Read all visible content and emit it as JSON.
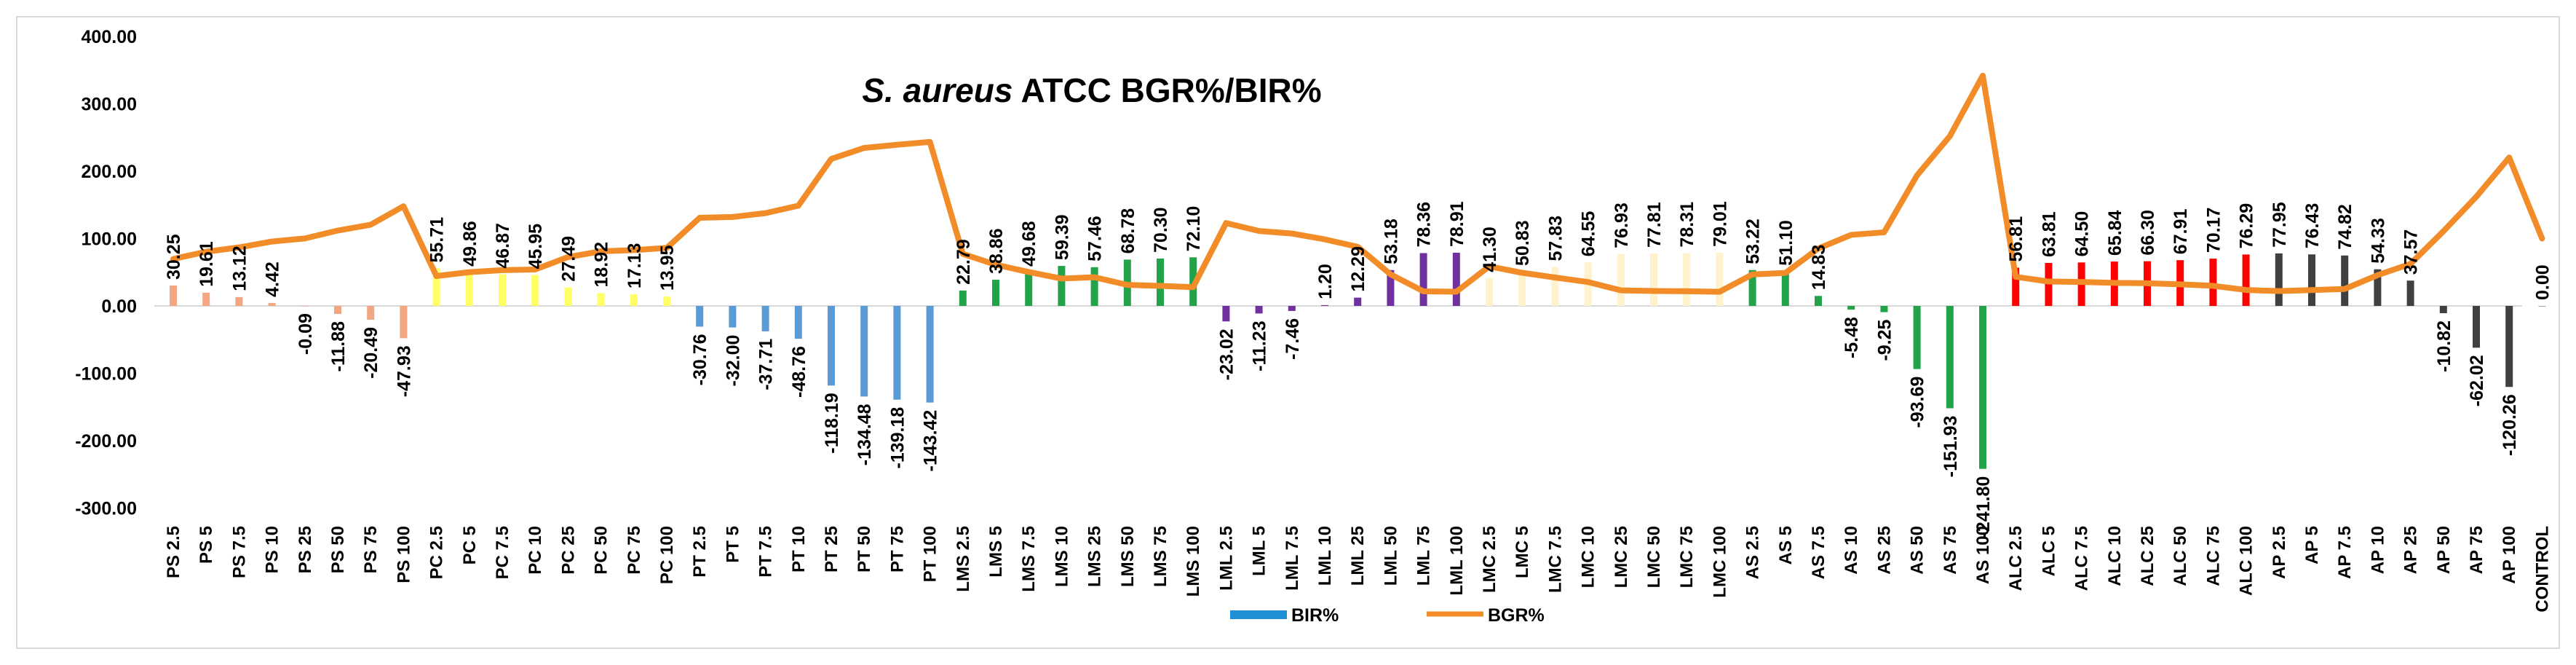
{
  "chart_data": {
    "type": "bar",
    "title_italic": "S. aureus",
    "title_rest": " ATCC BGR%/BIR%",
    "ylim": [
      -300,
      400
    ],
    "yticks": [
      "400.00",
      "300.00",
      "200.00",
      "100.00",
      "0.00",
      "-100.00",
      "-200.00",
      "-300.00"
    ],
    "ytick_values": [
      400,
      300,
      200,
      100,
      0,
      -100,
      -200,
      -300
    ],
    "grid": false,
    "legend_position": "bottom-center",
    "categories": [
      "PS 2.5",
      "PS 5",
      "PS 7.5",
      "PS 10",
      "PS 25",
      "PS 50",
      "PS 75",
      "PS 100",
      "PC 2.5",
      "PC 5",
      "PC 7.5",
      "PC 10",
      "PC 25",
      "PC 50",
      "PC 75",
      "PC 100",
      "PT 2.5",
      "PT 5",
      "PT 7.5",
      "PT 10",
      "PT 25",
      "PT 50",
      "PT 75",
      "PT 100",
      "LMS 2.5",
      "LMS 5",
      "LMS 7.5",
      "LMS 10",
      "LMS 25",
      "LMS 50",
      "LMS 75",
      "LMS 100",
      "LML 2.5",
      "LML 5",
      "LML 7.5",
      "LML 10",
      "LML 25",
      "LML 50",
      "LML 75",
      "LML 100",
      "LMC 2.5",
      "LMC 5",
      "LMC 7.5",
      "LMC 10",
      "LMC 25",
      "LMC 50",
      "LMC 75",
      "LMC 100",
      "AS 2.5",
      "AS 5",
      "AS 7.5",
      "AS 10",
      "AS 25",
      "AS 50",
      "AS 75",
      "AS 100",
      "ALC 2.5",
      "ALC 5",
      "ALC 7.5",
      "ALC 10",
      "ALC 25",
      "ALC 50",
      "ALC 75",
      "ALC 100",
      "AP 2.5",
      "AP 5",
      "AP 7.5",
      "AP 10",
      "AP 25",
      "AP 50",
      "AP 75",
      "AP 100",
      "CONTROL"
    ],
    "bar_labels": [
      "30.25",
      "19.61",
      "13.12",
      "4.42",
      "-0.09",
      "-11.88",
      "-20.49",
      "-47.93",
      "55.71",
      "49.86",
      "46.87",
      "45.95",
      "27.49",
      "18.92",
      "17.13",
      "13.95",
      "-30.76",
      "-32.00",
      "-37.71",
      "-48.76",
      "-118.19",
      "-134.48",
      "-139.18",
      "-143.42",
      "22.79",
      "38.86",
      "49.68",
      "59.39",
      "57.46",
      "68.78",
      "70.30",
      "72.10",
      "-23.02",
      "-11.23",
      "-7.46",
      "1.20",
      "12.29",
      "53.18",
      "78.36",
      "78.91",
      "41.30",
      "50.83",
      "57.83",
      "64.55",
      "76.93",
      "77.81",
      "78.31",
      "79.01",
      "53.22",
      "51.10",
      "14.83",
      "-5.48",
      "-9.25",
      "-93.69",
      "-151.93",
      "-241.80",
      "56.81",
      "63.81",
      "64.50",
      "65.84",
      "66.30",
      "67.91",
      "70.17",
      "76.29",
      "77.95",
      "76.43",
      "74.82",
      "54.33",
      "37.57",
      "-10.82",
      "-62.02",
      "-120.26",
      "0.00"
    ],
    "bar_colors": [
      "#f4a582",
      "#f4a582",
      "#f4a582",
      "#f4a582",
      "#f4a582",
      "#f4a582",
      "#f4a582",
      "#f4a582",
      "#ffff66",
      "#ffff66",
      "#ffff66",
      "#ffff66",
      "#ffff66",
      "#ffff66",
      "#ffff66",
      "#ffff66",
      "#5b9bd5",
      "#5b9bd5",
      "#5b9bd5",
      "#5b9bd5",
      "#5b9bd5",
      "#5b9bd5",
      "#5b9bd5",
      "#5b9bd5",
      "#22a34a",
      "#22a34a",
      "#22a34a",
      "#22a34a",
      "#22a34a",
      "#22a34a",
      "#22a34a",
      "#22a34a",
      "#7030a0",
      "#7030a0",
      "#7030a0",
      "#7030a0",
      "#7030a0",
      "#7030a0",
      "#7030a0",
      "#7030a0",
      "#fff2cc",
      "#fff2cc",
      "#fff2cc",
      "#fff2cc",
      "#fff2cc",
      "#fff2cc",
      "#fff2cc",
      "#fff2cc",
      "#22a34a",
      "#22a34a",
      "#22a34a",
      "#22a34a",
      "#22a34a",
      "#22a34a",
      "#22a34a",
      "#22a34a",
      "#ff0000",
      "#ff0000",
      "#ff0000",
      "#ff0000",
      "#ff0000",
      "#ff0000",
      "#ff0000",
      "#ff0000",
      "#404040",
      "#404040",
      "#404040",
      "#404040",
      "#404040",
      "#404040",
      "#404040",
      "#404040",
      "#404040"
    ],
    "series": [
      {
        "name": "BIR%",
        "color": "#1f8fd6",
        "values": [
          30.25,
          19.61,
          13.12,
          4.42,
          -0.09,
          -11.88,
          -20.49,
          -47.93,
          55.71,
          49.86,
          46.87,
          45.95,
          27.49,
          18.92,
          17.13,
          13.95,
          -30.76,
          -32.0,
          -37.71,
          -48.76,
          -118.19,
          -134.48,
          -139.18,
          -143.42,
          22.79,
          38.86,
          49.68,
          59.39,
          57.46,
          68.78,
          70.3,
          72.1,
          -23.02,
          -11.23,
          -7.46,
          1.2,
          12.29,
          53.18,
          78.36,
          78.91,
          41.3,
          50.83,
          57.83,
          64.55,
          76.93,
          77.81,
          78.31,
          79.01,
          53.22,
          51.1,
          14.83,
          -5.48,
          -9.25,
          -93.69,
          -151.93,
          -241.8,
          56.81,
          63.81,
          64.5,
          65.84,
          66.3,
          67.91,
          70.17,
          76.29,
          77.95,
          76.43,
          74.82,
          54.33,
          37.57,
          -10.82,
          -62.02,
          -120.26,
          0.0
        ]
      },
      {
        "name": "BGR%",
        "color": "#f28c28",
        "values": [
          69.75,
          80.39,
          86.88,
          95.58,
          100.09,
          111.88,
          120.49,
          147.93,
          44.29,
          50.14,
          53.13,
          54.05,
          72.51,
          81.08,
          82.87,
          86.05,
          130.76,
          132.0,
          137.71,
          148.76,
          218.19,
          234.48,
          239.18,
          243.42,
          77.21,
          61.14,
          50.32,
          40.61,
          42.54,
          31.22,
          29.7,
          27.9,
          123.02,
          111.23,
          107.46,
          98.8,
          87.71,
          46.82,
          21.64,
          21.09,
          58.7,
          49.17,
          42.17,
          35.45,
          23.07,
          22.19,
          21.69,
          20.99,
          46.78,
          48.9,
          85.17,
          105.48,
          109.25,
          193.69,
          251.93,
          341.8,
          43.19,
          36.19,
          35.5,
          34.16,
          33.7,
          32.09,
          29.83,
          23.71,
          22.05,
          23.57,
          25.18,
          45.67,
          62.43,
          110.82,
          162.02,
          220.26,
          100.0
        ]
      }
    ]
  }
}
